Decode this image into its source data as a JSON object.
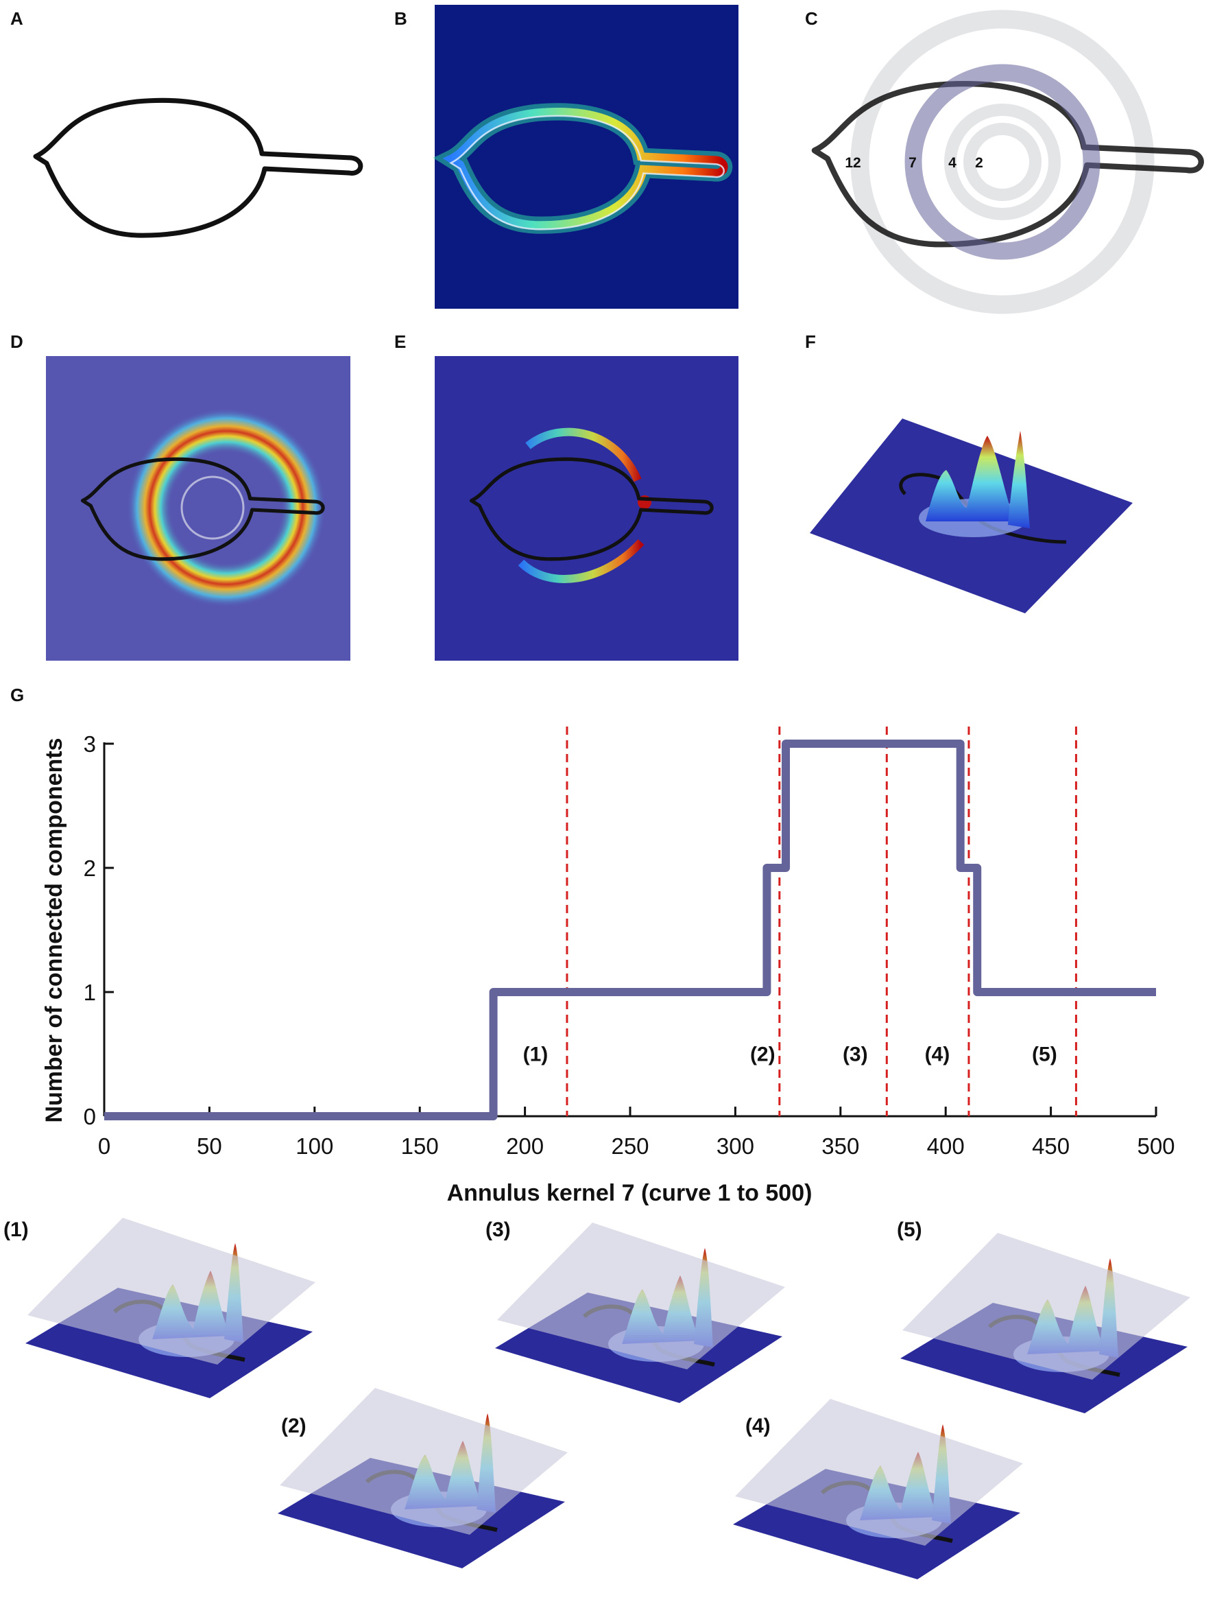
{
  "panels": {
    "A": "A",
    "B": "B",
    "C": "C",
    "D": "D",
    "E": "E",
    "F": "F",
    "G": "G"
  },
  "annulus_kernels": [
    "12",
    "7",
    "4",
    "2"
  ],
  "insets": [
    "(1)",
    "(2)",
    "(3)",
    "(4)",
    "(5)"
  ],
  "colors": {
    "step_line": "#64649a",
    "marker_line": "#d62020",
    "heatmap_bg": "#0b1a80",
    "ring_gray": "#e4e5e7",
    "ring_highlight": "#a8a6c4"
  },
  "chart_data": {
    "type": "line",
    "title": "",
    "xlabel": "Annulus kernel 7 (curve 1 to 500)",
    "ylabel": "Number of connected components",
    "xlim": [
      0,
      500
    ],
    "ylim": [
      0,
      3
    ],
    "xticks": [
      0,
      50,
      100,
      150,
      200,
      250,
      300,
      350,
      400,
      450,
      500
    ],
    "yticks": [
      0,
      1,
      2,
      3
    ],
    "grid": false,
    "series": [
      {
        "name": "connected components",
        "steps": [
          {
            "from": 0,
            "to": 185,
            "value": 0
          },
          {
            "from": 185,
            "to": 315,
            "value": 1
          },
          {
            "from": 315,
            "to": 324,
            "value": 2
          },
          {
            "from": 324,
            "to": 407,
            "value": 3
          },
          {
            "from": 407,
            "to": 415,
            "value": 2
          },
          {
            "from": 415,
            "to": 500,
            "value": 1
          }
        ]
      }
    ],
    "markers": [
      220,
      321,
      372,
      411,
      462
    ],
    "annotations": [
      {
        "text": "(1)",
        "x": 205,
        "y": 0.5
      },
      {
        "text": "(2)",
        "x": 313,
        "y": 0.5
      },
      {
        "text": "(3)",
        "x": 357,
        "y": 0.5
      },
      {
        "text": "(4)",
        "x": 396,
        "y": 0.5
      },
      {
        "text": "(5)",
        "x": 447,
        "y": 0.5
      }
    ]
  }
}
